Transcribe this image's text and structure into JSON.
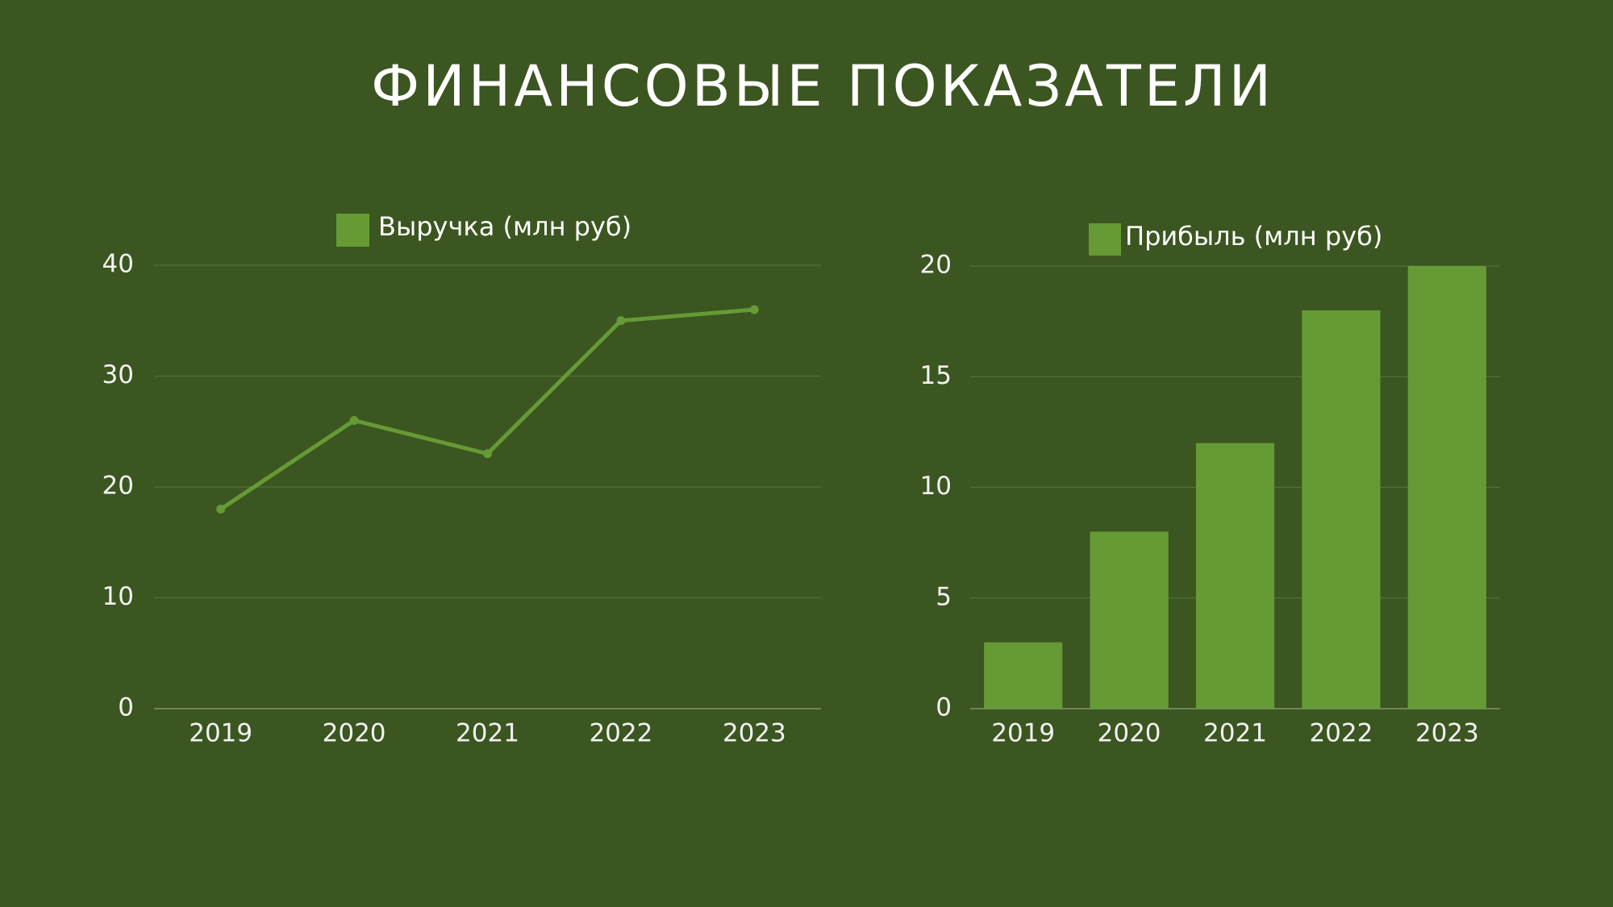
{
  "title": "ФИНАНСОВЫЕ ПОКАЗАТЕЛИ",
  "chart_data": [
    {
      "type": "line",
      "categories": [
        "2019",
        "2020",
        "2021",
        "2022",
        "2023"
      ],
      "series": [
        {
          "name": "Выручка (млн руб)",
          "color": "#659a35",
          "values": [
            18,
            26,
            23,
            35,
            36
          ]
        }
      ],
      "ylim": [
        0,
        40
      ],
      "yticks": [
        0,
        10,
        20,
        30,
        40
      ],
      "grid": true,
      "legend": "top"
    },
    {
      "type": "bar",
      "categories": [
        "2019",
        "2020",
        "2021",
        "2022",
        "2023"
      ],
      "series": [
        {
          "name": "Прибыль (млн руб)",
          "color": "#659a35",
          "values": [
            3,
            8,
            12,
            18,
            20
          ]
        }
      ],
      "ylim": [
        0,
        20
      ],
      "yticks": [
        0,
        5,
        10,
        15,
        20
      ],
      "grid": true,
      "legend": "top"
    }
  ]
}
